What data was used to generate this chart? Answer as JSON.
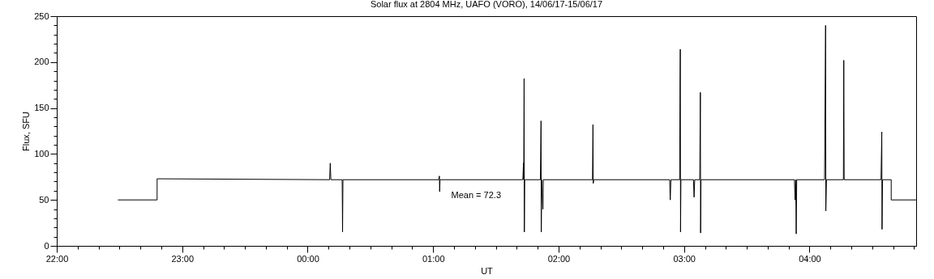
{
  "chart_data": {
    "type": "line",
    "title": "Solar flux at 2804 MHz, UAFO (VORO),  14/06/17-15/06/17",
    "xlabel": "UT",
    "ylabel": "Flux, SFU",
    "annotations": [
      "Mean =     72.3"
    ],
    "x": [
      "--06-14T22:29:24",
      "--06-14T22:48:00",
      "--06-14T22:48:00",
      "--06-15T00:10:30",
      "--06-15T00:10:48",
      "--06-15T00:11:06",
      "--06-15T00:16:30",
      "--06-15T00:16:41",
      "--06-15T00:16:52",
      "--06-15T01:02:42",
      "--06-15T01:03:00",
      "--06-15T01:03:07",
      "--06-15T01:03:18",
      "--06-15T01:42:54",
      "--06-15T01:43:12",
      "--06-15T01:43:19",
      "--06-15T01:43:30",
      "--06-15T01:43:37",
      "--06-15T01:43:48",
      "--06-15T01:51:18",
      "--06-15T01:51:36",
      "--06-15T01:51:43",
      "--06-15T01:51:54",
      "--06-15T01:52:30",
      "--06-15T01:52:41",
      "--06-15T02:16:12",
      "--06-15T02:16:26",
      "--06-15T02:16:34",
      "--06-15T02:16:48",
      "--06-15T02:53:06",
      "--06-15T02:53:24",
      "--06-15T02:53:42",
      "--06-15T02:57:54",
      "--06-15T02:58:05",
      "--06-15T02:58:12",
      "--06-15T02:58:19",
      "--06-15T02:58:30",
      "--06-15T03:04:30",
      "--06-15T03:04:48",
      "--06-15T03:05:06",
      "--06-15T03:07:30",
      "--06-15T03:07:48",
      "--06-15T03:07:55",
      "--06-15T03:08:06",
      "--06-15T03:52:48",
      "--06-15T03:53:06",
      "--06-15T03:53:24",
      "--06-15T03:53:38",
      "--06-15T03:53:53",
      "--06-15T04:07:12",
      "--06-15T04:07:41",
      "--06-15T04:07:48",
      "--06-15T04:08:06",
      "--06-15T04:16:12",
      "--06-15T04:16:23",
      "--06-15T04:16:34",
      "--06-15T04:34:12",
      "--06-15T04:34:34",
      "--06-15T04:34:41",
      "--06-15T04:34:55",
      "--06-15T04:39:04",
      "--06-15T04:39:04",
      "--06-15T04:51"
    ],
    "series": [
      {
        "color": "#000000",
        "values": [
          50,
          50,
          73,
          72,
          90,
          72,
          72,
          15,
          72,
          72,
          76,
          59,
          72,
          72,
          90,
          72,
          182,
          15,
          72,
          72,
          136,
          15,
          72,
          40,
          72,
          72,
          132,
          68,
          72,
          72,
          50,
          72,
          72,
          177,
          214,
          15,
          72,
          72,
          53,
          72,
          72,
          167,
          14,
          72,
          72,
          50,
          72,
          13,
          72,
          72,
          240,
          38,
          72,
          72,
          202,
          72,
          72,
          124,
          18,
          72,
          72,
          50,
          50
        ]
      }
    ],
    "xlim": [
      "--06-14T22:00",
      "--06-15T04:51"
    ],
    "xticks": [
      {
        "value": "--06-14T22:00",
        "label": "22:00"
      },
      {
        "value": "--06-14T22:10",
        "label": null
      },
      {
        "value": "--06-14T22:20",
        "label": null
      },
      {
        "value": "--06-14T22:30",
        "label": null
      },
      {
        "value": "--06-14T22:40",
        "label": null
      },
      {
        "value": "--06-14T22:50",
        "label": null
      },
      {
        "value": "--06-14T23:00",
        "label": "23:00"
      },
      {
        "value": "--06-14T23:10",
        "label": null
      },
      {
        "value": "--06-14T23:20",
        "label": null
      },
      {
        "value": "--06-14T23:30",
        "label": null
      },
      {
        "value": "--06-14T23:40",
        "label": null
      },
      {
        "value": "--06-14T23:50",
        "label": null
      },
      {
        "value": "--06-15T00:00",
        "label": "00:00"
      },
      {
        "value": "--06-15T00:10",
        "label": null
      },
      {
        "value": "--06-15T00:20",
        "label": null
      },
      {
        "value": "--06-15T00:30",
        "label": null
      },
      {
        "value": "--06-15T00:40",
        "label": null
      },
      {
        "value": "--06-15T00:50",
        "label": null
      },
      {
        "value": "--06-15T01:00",
        "label": "01:00"
      },
      {
        "value": "--06-15T01:10",
        "label": null
      },
      {
        "value": "--06-15T01:20",
        "label": null
      },
      {
        "value": "--06-15T01:30",
        "label": null
      },
      {
        "value": "--06-15T01:40",
        "label": null
      },
      {
        "value": "--06-15T01:50",
        "label": null
      },
      {
        "value": "--06-15T02:00",
        "label": "02:00"
      },
      {
        "value": "--06-15T02:10",
        "label": null
      },
      {
        "value": "--06-15T02:20",
        "label": null
      },
      {
        "value": "--06-15T02:30",
        "label": null
      },
      {
        "value": "--06-15T02:40",
        "label": null
      },
      {
        "value": "--06-15T02:50",
        "label": null
      },
      {
        "value": "--06-15T03:00",
        "label": "03:00"
      },
      {
        "value": "--06-15T03:10",
        "label": null
      },
      {
        "value": "--06-15T03:20",
        "label": null
      },
      {
        "value": "--06-15T03:30",
        "label": null
      },
      {
        "value": "--06-15T03:40",
        "label": null
      },
      {
        "value": "--06-15T03:50",
        "label": null
      },
      {
        "value": "--06-15T04:00",
        "label": "04:00"
      },
      {
        "value": "--06-15T04:10",
        "label": null
      },
      {
        "value": "--06-15T04:20",
        "label": null
      },
      {
        "value": "--06-15T04:30",
        "label": null
      },
      {
        "value": "--06-15T04:40",
        "label": null
      },
      {
        "value": "--06-15T04:50",
        "label": null
      }
    ],
    "ylim": [
      0,
      250
    ],
    "yticks": [
      0,
      {
        "value": 10,
        "label": null
      },
      {
        "value": 20,
        "label": null
      },
      {
        "value": 30,
        "label": null
      },
      {
        "value": 40,
        "label": null
      },
      50,
      {
        "value": 60,
        "label": null
      },
      {
        "value": 70,
        "label": null
      },
      {
        "value": 80,
        "label": null
      },
      {
        "value": 90,
        "label": null
      },
      100,
      {
        "value": 110,
        "label": null
      },
      {
        "value": 120,
        "label": null
      },
      {
        "value": 130,
        "label": null
      },
      {
        "value": 140,
        "label": null
      },
      150,
      {
        "value": 160,
        "label": null
      },
      {
        "value": 170,
        "label": null
      },
      {
        "value": 180,
        "label": null
      },
      {
        "value": 190,
        "label": null
      },
      200,
      {
        "value": 210,
        "label": null
      },
      {
        "value": 220,
        "label": null
      },
      {
        "value": 230,
        "label": null
      },
      {
        "value": 240,
        "label": null
      },
      250
    ]
  }
}
